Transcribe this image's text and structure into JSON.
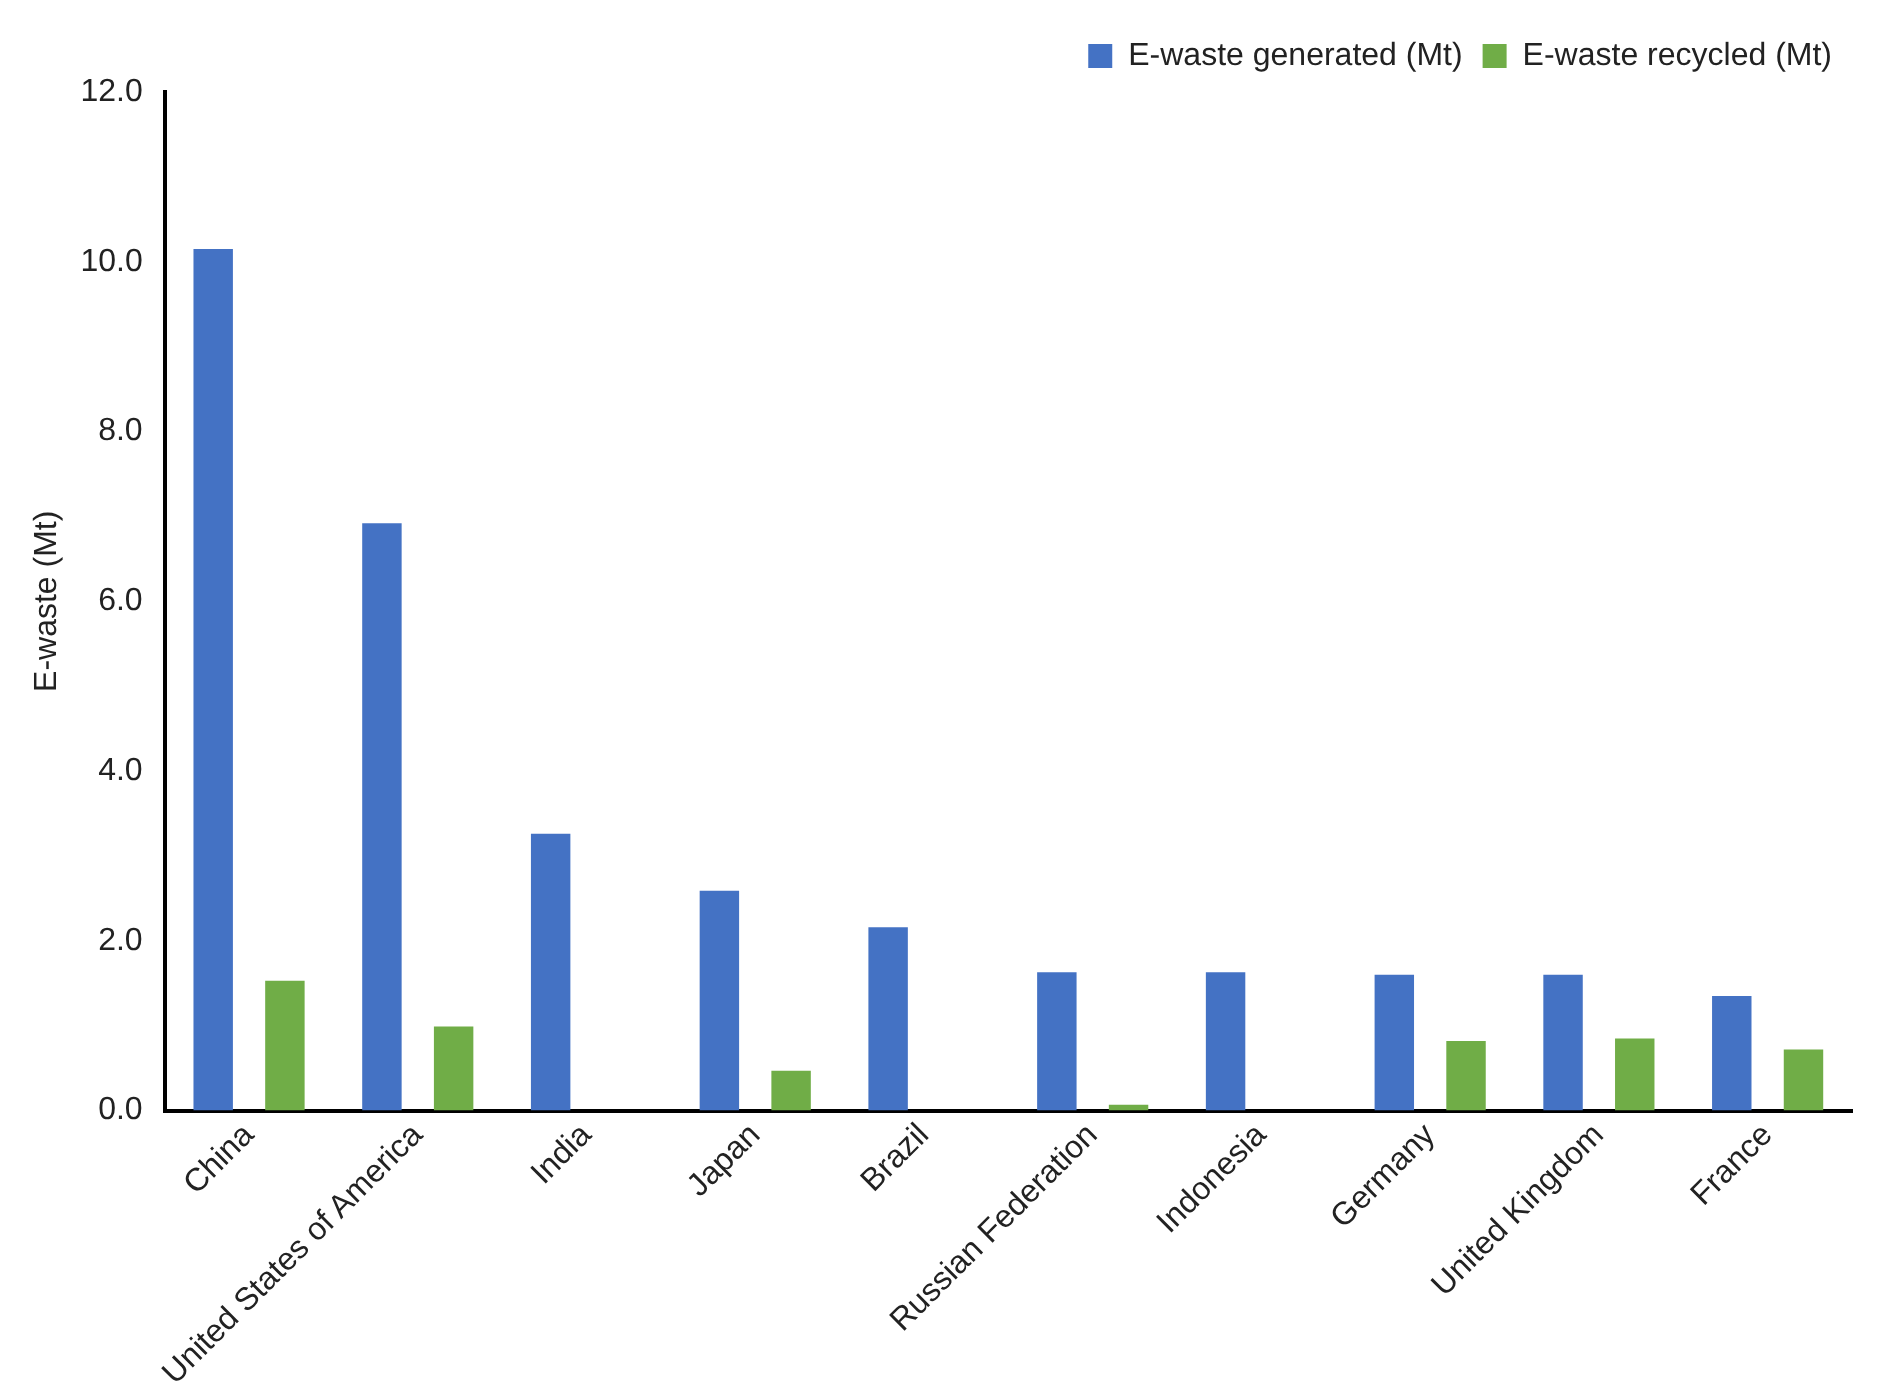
{
  "chart_data": {
    "type": "bar",
    "ylabel": "E-waste (Mt)",
    "categories": [
      "China",
      "United States of America",
      "India",
      "Japan",
      "Brazil",
      "Russian Federation",
      "Indonesia",
      "Germany",
      "United Kingdom",
      "France"
    ],
    "series": [
      {
        "name": "E-waste generated (Mt)",
        "color": "#4472c4",
        "values": [
          10.15,
          6.92,
          3.26,
          2.59,
          2.16,
          1.63,
          1.63,
          1.6,
          1.6,
          1.35
        ]
      },
      {
        "name": "E-waste recycled (Mt)",
        "color": "#70ad47",
        "values": [
          1.53,
          0.99,
          null,
          0.47,
          null,
          0.07,
          null,
          0.82,
          0.85,
          0.72
        ]
      }
    ],
    "ylim": [
      0,
      12
    ],
    "yticks": [
      {
        "value": 0,
        "label": "0.0"
      },
      {
        "value": 2,
        "label": "2.0"
      },
      {
        "value": 4,
        "label": "4.0"
      },
      {
        "value": 6,
        "label": "6.0"
      },
      {
        "value": 8,
        "label": "8.0"
      },
      {
        "value": 10,
        "label": "10.0"
      },
      {
        "value": 12,
        "label": "12.0"
      }
    ],
    "grid": false,
    "legend": "top right"
  }
}
